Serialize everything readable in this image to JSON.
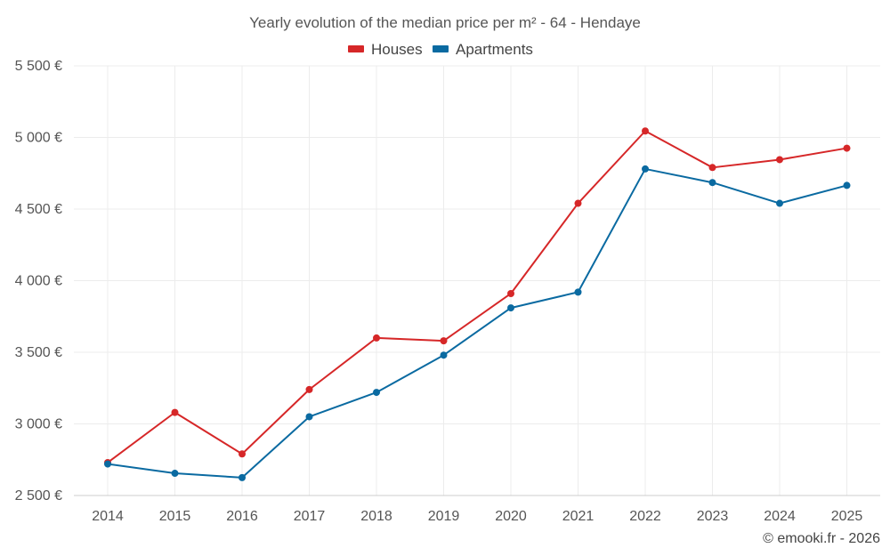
{
  "chart_data": {
    "type": "line",
    "title": "Yearly evolution of the median price per m² - 64 - Hendaye",
    "categories": [
      "2014",
      "2015",
      "2016",
      "2017",
      "2018",
      "2019",
      "2020",
      "2021",
      "2022",
      "2023",
      "2024",
      "2025"
    ],
    "series": [
      {
        "name": "Houses",
        "color": "#d62728",
        "values": [
          2730,
          3080,
          2790,
          3240,
          3600,
          3580,
          3910,
          4540,
          5045,
          4790,
          4845,
          4925
        ]
      },
      {
        "name": "Apartments",
        "color": "#0a6aa1",
        "values": [
          2720,
          2655,
          2625,
          3050,
          3220,
          3480,
          3810,
          3920,
          4780,
          4685,
          4540,
          4665
        ]
      }
    ],
    "ylim": [
      2500,
      5500
    ],
    "yticks": [
      2500,
      3000,
      3500,
      4000,
      4500,
      5000,
      5500
    ],
    "ytick_labels": [
      "2 500 €",
      "3 000 €",
      "3 500 €",
      "4 000 €",
      "4 500 €",
      "5 000 €",
      "5 500 €"
    ],
    "xlabel": "",
    "ylabel": "",
    "grid": true,
    "legend_position": "top-center"
  },
  "credit": "© emooki.fr - 2026"
}
